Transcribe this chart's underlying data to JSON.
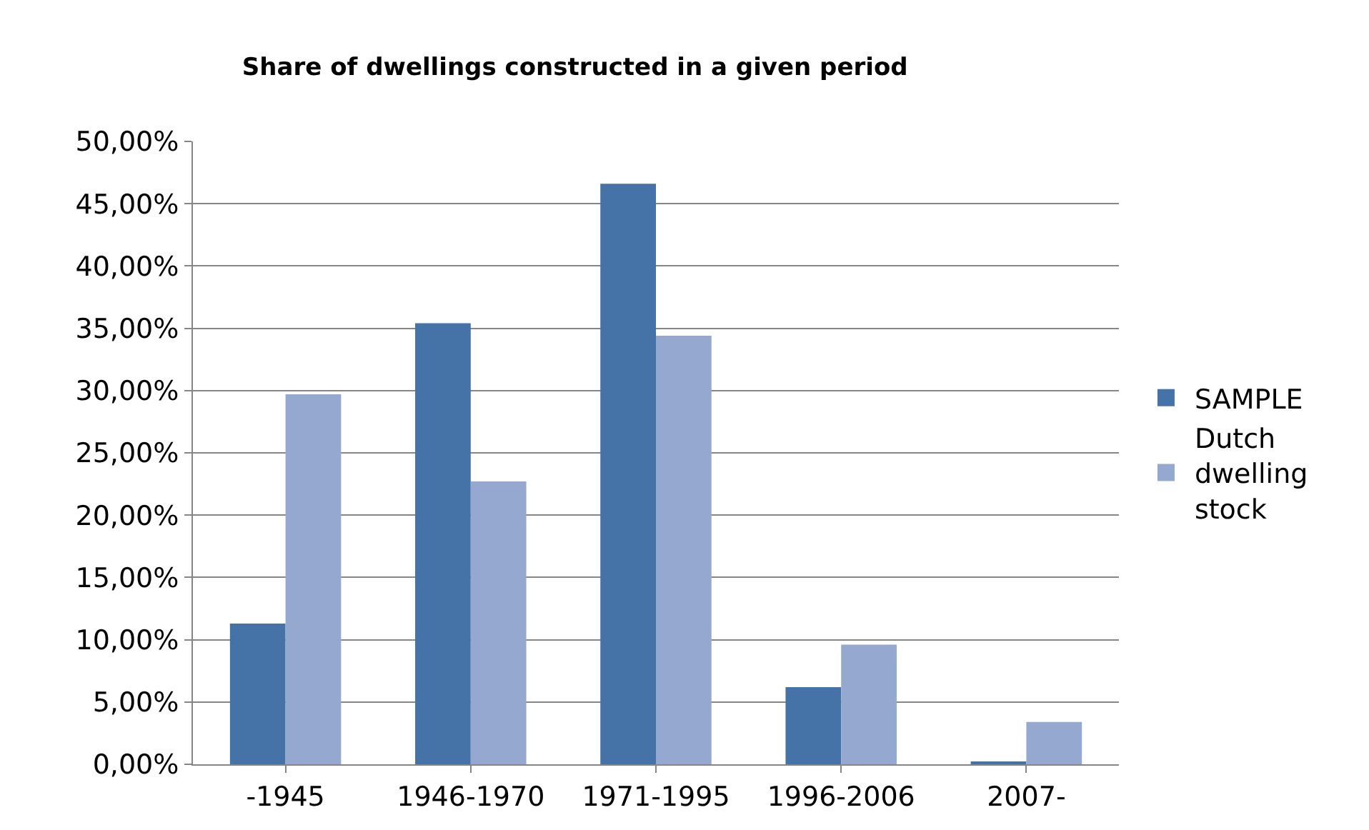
{
  "chart_data": {
    "type": "bar",
    "title": "Share of dwellings constructed in a given period",
    "categories": [
      "-1945",
      "1946-1970",
      "1971-1995",
      "1996-2006",
      "2007-"
    ],
    "series": [
      {
        "name": "SAMPLE",
        "color": "#4572a7",
        "values": [
          11.3,
          35.4,
          46.6,
          6.2,
          0.2
        ]
      },
      {
        "name": "Dutch dwelling stock",
        "color": "#95a9d0",
        "values": [
          29.7,
          22.7,
          34.4,
          9.6,
          3.4
        ]
      }
    ],
    "ylim": [
      0,
      50
    ],
    "yticks": [
      {
        "value": 0,
        "label": "0,00%"
      },
      {
        "value": 5,
        "label": "5,00%"
      },
      {
        "value": 10,
        "label": "10,00%"
      },
      {
        "value": 15,
        "label": "15,00%"
      },
      {
        "value": 20,
        "label": "20,00%"
      },
      {
        "value": 25,
        "label": "25,00%"
      },
      {
        "value": 30,
        "label": "30,00%"
      },
      {
        "value": 35,
        "label": "35,00%"
      },
      {
        "value": 40,
        "label": "40,00%"
      },
      {
        "value": 45,
        "label": "45,00%"
      },
      {
        "value": 50,
        "label": "50,00%"
      }
    ],
    "grid": "y",
    "legend": "right"
  }
}
